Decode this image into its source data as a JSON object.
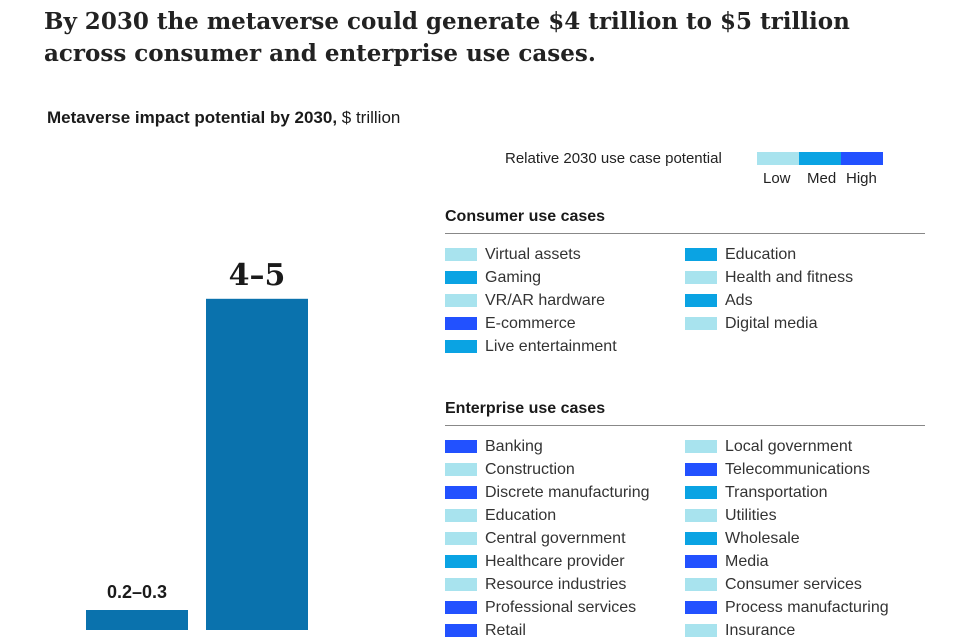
{
  "headline": "By 2030 the metaverse could generate $4 trillion to $5 trillion across consumer and enterprise use cases.",
  "chart_title_bold": "Metaverse impact potential by 2030,",
  "chart_title_unit": " $ trillion",
  "key": {
    "label": "Relative 2030 use case potential",
    "levels": [
      {
        "name": "Low",
        "color": "#a8e3ee"
      },
      {
        "name": "Med",
        "color": "#0aa3e3"
      },
      {
        "name": "High",
        "color": "#2251ff"
      }
    ]
  },
  "chart_data": {
    "type": "bar",
    "categories": [
      "",
      ""
    ],
    "series": [
      {
        "values": [
          0.25,
          4.5
        ],
        "labels": [
          "0.2–0.3",
          "4–5"
        ]
      }
    ],
    "ranges": [
      [
        0.2,
        0.3
      ],
      [
        4,
        5
      ]
    ],
    "bar_color": "#0a72ad",
    "ylim": [
      0,
      5
    ],
    "xlabel": "",
    "ylabel": "",
    "grid": false
  },
  "consumer": {
    "title": "Consumer use cases",
    "items": [
      {
        "label": "Virtual assets",
        "level": "Low"
      },
      {
        "label": "Education",
        "level": "Med"
      },
      {
        "label": "Gaming",
        "level": "Med"
      },
      {
        "label": "Health and fitness",
        "level": "Low"
      },
      {
        "label": "VR/AR hardware",
        "level": "Low"
      },
      {
        "label": "Ads",
        "level": "Med"
      },
      {
        "label": "E-commerce",
        "level": "High"
      },
      {
        "label": "Digital media",
        "level": "Low"
      },
      {
        "label": "Live entertainment",
        "level": "Med"
      }
    ]
  },
  "enterprise": {
    "title": "Enterprise use cases",
    "items": [
      {
        "label": "Banking",
        "level": "High"
      },
      {
        "label": "Local government",
        "level": "Low"
      },
      {
        "label": "Construction",
        "level": "Low"
      },
      {
        "label": "Telecommunications",
        "level": "High"
      },
      {
        "label": "Discrete manufacturing",
        "level": "High"
      },
      {
        "label": "Transportation",
        "level": "Med"
      },
      {
        "label": "Education",
        "level": "Low"
      },
      {
        "label": "Utilities",
        "level": "Low"
      },
      {
        "label": "Central government",
        "level": "Low"
      },
      {
        "label": "Wholesale",
        "level": "Med"
      },
      {
        "label": "Healthcare provider",
        "level": "Med"
      },
      {
        "label": "Media",
        "level": "High"
      },
      {
        "label": "Resource industries",
        "level": "Low"
      },
      {
        "label": "Consumer services",
        "level": "Low"
      },
      {
        "label": "Professional services",
        "level": "High"
      },
      {
        "label": "Process manufacturing",
        "level": "High"
      },
      {
        "label": "Retail",
        "level": "High"
      },
      {
        "label": "Insurance",
        "level": "Low"
      }
    ]
  }
}
